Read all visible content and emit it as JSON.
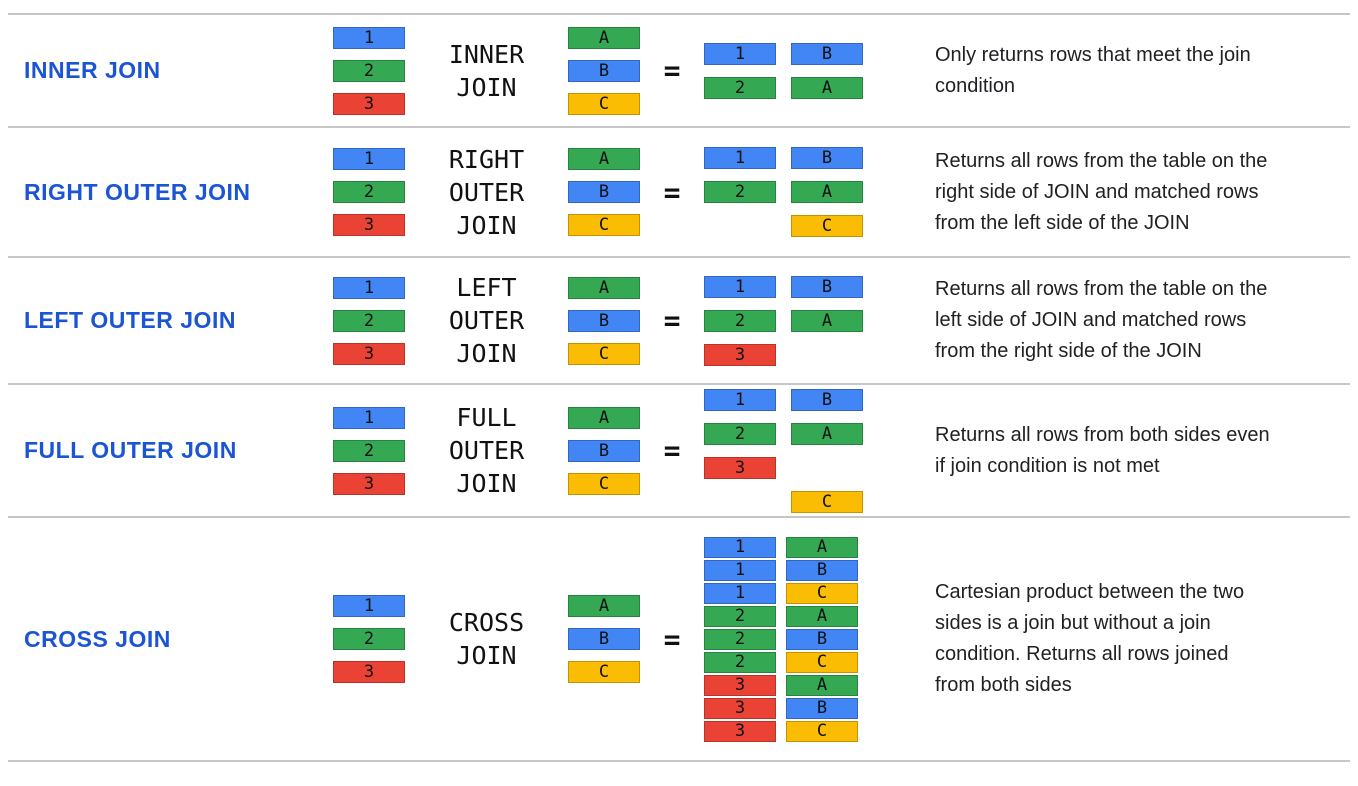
{
  "page": {
    "divider_color": "#c6c6c6",
    "title_color": "#1b55d3",
    "text_color": "#202124"
  },
  "palette": {
    "blue": "#4285F4",
    "green": "#34A853",
    "red": "#EA4335",
    "yellow": "#FBBC04"
  },
  "equals_sign": "=",
  "source_tables": {
    "left": [
      {
        "label": "1",
        "color": "blue"
      },
      {
        "label": "2",
        "color": "green"
      },
      {
        "label": "3",
        "color": "red"
      }
    ],
    "right": [
      {
        "label": "A",
        "color": "green"
      },
      {
        "label": "B",
        "color": "blue"
      },
      {
        "label": "C",
        "color": "yellow"
      }
    ]
  },
  "rows": [
    {
      "id": "inner-join",
      "title": "INNER JOIN",
      "operator_lines": [
        "INNER",
        "JOIN"
      ],
      "result_pairs": [
        [
          {
            "label": "1",
            "color": "blue"
          },
          {
            "label": "B",
            "color": "blue"
          }
        ],
        [
          {
            "label": "2",
            "color": "green"
          },
          {
            "label": "A",
            "color": "green"
          }
        ]
      ],
      "description": "Only returns rows that meet the join condition"
    },
    {
      "id": "right-outer-join",
      "title": "RIGHT OUTER JOIN",
      "operator_lines": [
        "RIGHT",
        "OUTER",
        "JOIN"
      ],
      "result_pairs": [
        [
          {
            "label": "1",
            "color": "blue"
          },
          {
            "label": "B",
            "color": "blue"
          }
        ],
        [
          {
            "label": "2",
            "color": "green"
          },
          {
            "label": "A",
            "color": "green"
          }
        ],
        [
          null,
          {
            "label": "C",
            "color": "yellow"
          }
        ]
      ],
      "description": "Returns all rows from the table on the right side of JOIN and matched rows from the left side of the JOIN"
    },
    {
      "id": "left-outer-join",
      "title": "LEFT OUTER JOIN",
      "operator_lines": [
        "LEFT",
        "OUTER",
        "JOIN"
      ],
      "result_pairs": [
        [
          {
            "label": "1",
            "color": "blue"
          },
          {
            "label": "B",
            "color": "blue"
          }
        ],
        [
          {
            "label": "2",
            "color": "green"
          },
          {
            "label": "A",
            "color": "green"
          }
        ],
        [
          {
            "label": "3",
            "color": "red"
          },
          null
        ]
      ],
      "description": "Returns all rows from the table on the left side of JOIN and matched rows from the right side of the JOIN"
    },
    {
      "id": "full-outer-join",
      "title": "FULL OUTER JOIN",
      "operator_lines": [
        "FULL",
        "OUTER",
        "JOIN"
      ],
      "result_pairs": [
        [
          {
            "label": "1",
            "color": "blue"
          },
          {
            "label": "B",
            "color": "blue"
          }
        ],
        [
          {
            "label": "2",
            "color": "green"
          },
          {
            "label": "A",
            "color": "green"
          }
        ],
        [
          {
            "label": "3",
            "color": "red"
          },
          null
        ],
        [
          null,
          {
            "label": "C",
            "color": "yellow"
          }
        ]
      ],
      "description": "Returns all rows from both sides even if join condition is not met"
    },
    {
      "id": "cross-join",
      "title": "CROSS JOIN",
      "operator_lines": [
        "CROSS",
        "JOIN"
      ],
      "result_pairs": [
        [
          {
            "label": "1",
            "color": "blue"
          },
          {
            "label": "A",
            "color": "green"
          }
        ],
        [
          {
            "label": "1",
            "color": "blue"
          },
          {
            "label": "B",
            "color": "blue"
          }
        ],
        [
          {
            "label": "1",
            "color": "blue"
          },
          {
            "label": "C",
            "color": "yellow"
          }
        ],
        [
          {
            "label": "2",
            "color": "green"
          },
          {
            "label": "A",
            "color": "green"
          }
        ],
        [
          {
            "label": "2",
            "color": "green"
          },
          {
            "label": "B",
            "color": "blue"
          }
        ],
        [
          {
            "label": "2",
            "color": "green"
          },
          {
            "label": "C",
            "color": "yellow"
          }
        ],
        [
          {
            "label": "3",
            "color": "red"
          },
          {
            "label": "A",
            "color": "green"
          }
        ],
        [
          {
            "label": "3",
            "color": "red"
          },
          {
            "label": "B",
            "color": "blue"
          }
        ],
        [
          {
            "label": "3",
            "color": "red"
          },
          {
            "label": "C",
            "color": "yellow"
          }
        ]
      ],
      "description": "Cartesian product between the two sides is a join but without a join condition. Returns all rows joined from both sides"
    }
  ]
}
